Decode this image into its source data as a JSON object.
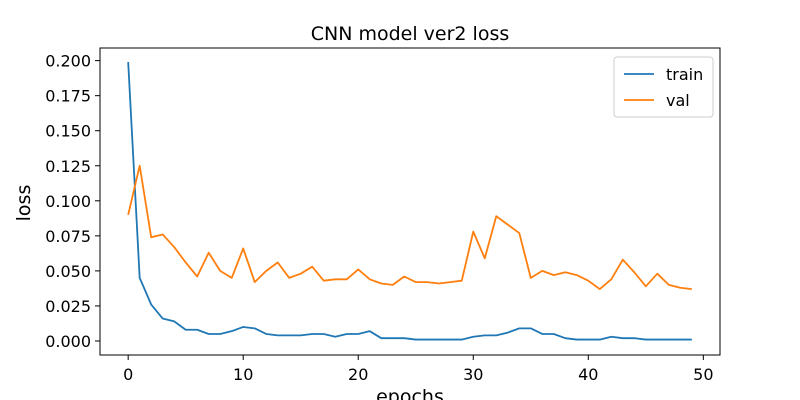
{
  "chart_data": {
    "type": "line",
    "title": "CNN model ver2 loss",
    "xlabel": "epochs",
    "ylabel": "loss",
    "xlim": [
      -2.45,
      51.45
    ],
    "ylim": [
      -0.01,
      0.209
    ],
    "xticks": [
      0,
      10,
      20,
      30,
      40,
      50
    ],
    "yticks": [
      0.0,
      0.025,
      0.05,
      0.075,
      0.1,
      0.125,
      0.15,
      0.175,
      0.2
    ],
    "ytick_labels": [
      "0.000",
      "0.025",
      "0.050",
      "0.075",
      "0.100",
      "0.125",
      "0.150",
      "0.175",
      "0.200"
    ],
    "legend_position": "top-right",
    "grid": false,
    "series": [
      {
        "name": "train",
        "color": "#1f77b4",
        "x": [
          0,
          1,
          2,
          3,
          4,
          5,
          6,
          7,
          8,
          9,
          10,
          11,
          12,
          13,
          14,
          15,
          16,
          17,
          18,
          19,
          20,
          21,
          22,
          23,
          24,
          25,
          26,
          27,
          28,
          29,
          30,
          31,
          32,
          33,
          34,
          35,
          36,
          37,
          38,
          39,
          40,
          41,
          42,
          43,
          44,
          45,
          46,
          47,
          48,
          49
        ],
        "values": [
          0.199,
          0.045,
          0.026,
          0.016,
          0.014,
          0.008,
          0.008,
          0.005,
          0.005,
          0.007,
          0.01,
          0.009,
          0.005,
          0.004,
          0.004,
          0.004,
          0.005,
          0.005,
          0.003,
          0.005,
          0.005,
          0.007,
          0.002,
          0.002,
          0.002,
          0.001,
          0.001,
          0.001,
          0.001,
          0.001,
          0.003,
          0.004,
          0.004,
          0.006,
          0.009,
          0.009,
          0.005,
          0.005,
          0.002,
          0.001,
          0.001,
          0.001,
          0.003,
          0.002,
          0.002,
          0.001,
          0.001,
          0.001,
          0.001,
          0.001
        ]
      },
      {
        "name": "val",
        "color": "#ff7f0e",
        "x": [
          0,
          1,
          2,
          3,
          4,
          5,
          6,
          7,
          8,
          9,
          10,
          11,
          12,
          13,
          14,
          15,
          16,
          17,
          18,
          19,
          20,
          21,
          22,
          23,
          24,
          25,
          26,
          27,
          28,
          29,
          30,
          31,
          32,
          33,
          34,
          35,
          36,
          37,
          38,
          39,
          40,
          41,
          42,
          43,
          44,
          45,
          46,
          47,
          48,
          49
        ],
        "values": [
          0.09,
          0.125,
          0.074,
          0.076,
          0.067,
          0.056,
          0.046,
          0.063,
          0.05,
          0.045,
          0.066,
          0.042,
          0.05,
          0.056,
          0.045,
          0.048,
          0.053,
          0.043,
          0.044,
          0.044,
          0.051,
          0.044,
          0.041,
          0.04,
          0.046,
          0.042,
          0.042,
          0.041,
          0.042,
          0.043,
          0.078,
          0.059,
          0.089,
          0.083,
          0.077,
          0.045,
          0.05,
          0.047,
          0.049,
          0.047,
          0.043,
          0.037,
          0.044,
          0.058,
          0.049,
          0.039,
          0.048,
          0.04,
          0.038,
          0.037
        ]
      }
    ]
  }
}
